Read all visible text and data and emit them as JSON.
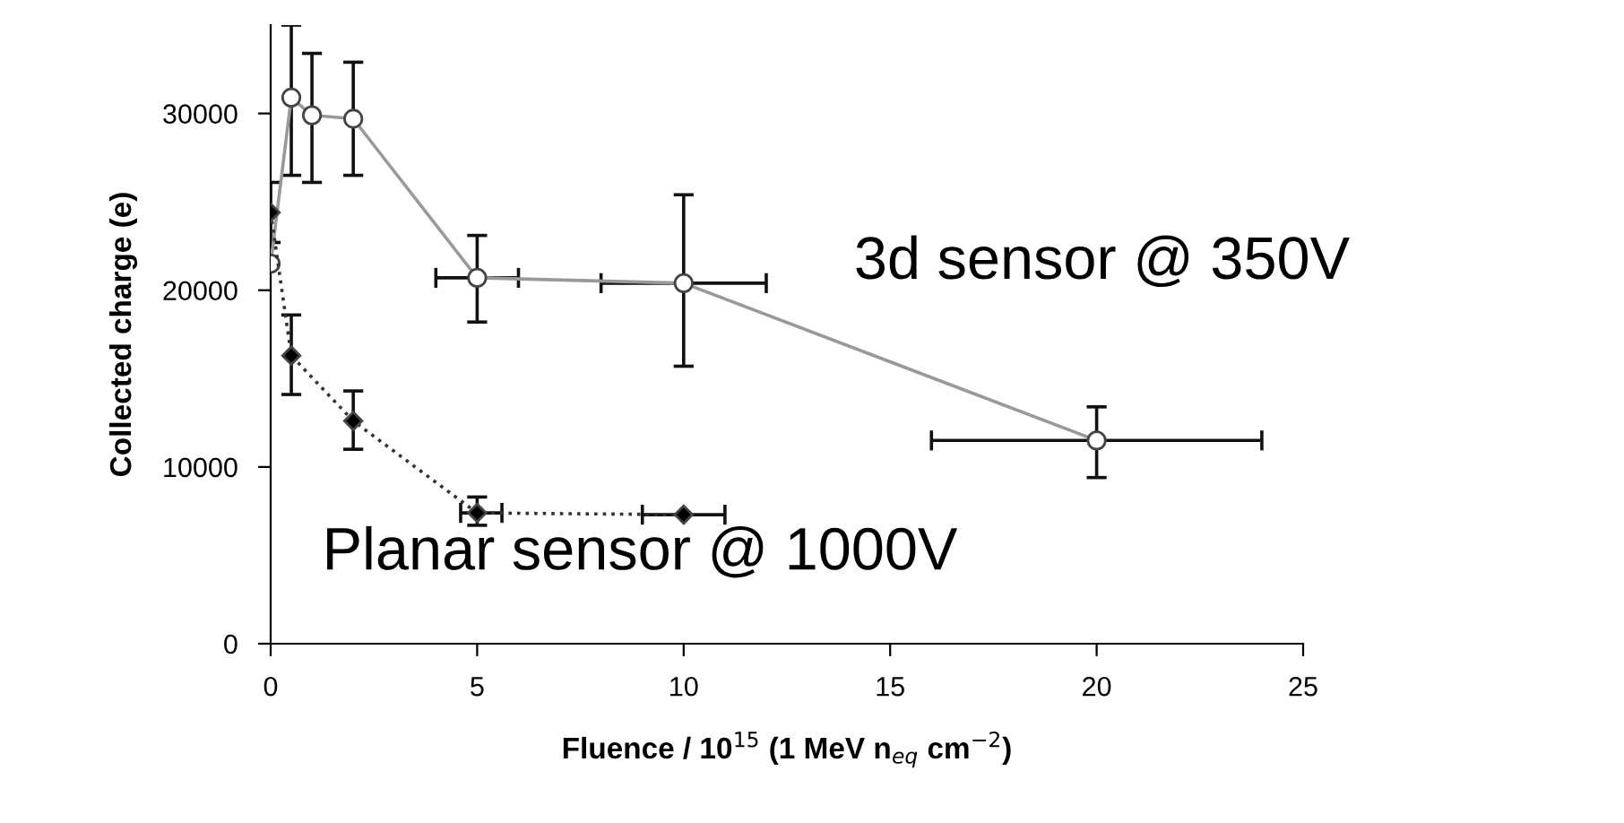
{
  "chart_data": {
    "type": "line",
    "xlabel": "Fluence / 10$^{15}$ (1 MeV n$_{eq}$ cm$^{−2}$)",
    "ylabel": "Collected charge (e)",
    "xlim": [
      0,
      25
    ],
    "xticks": [
      0,
      5,
      10,
      15,
      20,
      25
    ],
    "ylim": [
      0,
      35000
    ],
    "yticks": [
      0,
      10000,
      20000,
      30000
    ],
    "grid": false,
    "legend": false,
    "annotations": [
      "3d sensor @ 350V",
      "Planar sensor @ 1000V"
    ],
    "series": [
      {
        "color": "#999999",
        "marker": "circle",
        "line_style": "solid",
        "x": [
          0,
          0.5,
          1,
          2,
          5,
          10,
          20
        ],
        "values": [
          21500,
          30900,
          29900,
          29700,
          20700,
          20400,
          11500
        ],
        "errors": [
          null,
          [
            26500,
            35000
          ],
          [
            26100,
            33400
          ],
          [
            26500,
            32900
          ],
          [
            18200,
            23100
          ],
          [
            15700,
            25400
          ],
          [
            9400,
            13400
          ]
        ],
        "xerrors": [
          null,
          null,
          null,
          null,
          [
            4,
            6
          ],
          [
            8,
            12
          ],
          [
            16,
            24
          ]
        ]
      },
      {
        "color": "#333333",
        "marker": "diamond",
        "line_style": "dotted",
        "x": [
          0,
          0.5,
          2,
          5,
          10
        ],
        "values": [
          24400,
          16300,
          12600,
          7400,
          7300
        ],
        "errors": [
          [
            22700,
            26100
          ],
          [
            14100,
            18600
          ],
          [
            11000,
            14300
          ],
          [
            6700,
            8300
          ],
          null
        ],
        "xerrors": [
          null,
          null,
          null,
          [
            4.6,
            5.6
          ],
          [
            9,
            11
          ]
        ]
      }
    ]
  }
}
